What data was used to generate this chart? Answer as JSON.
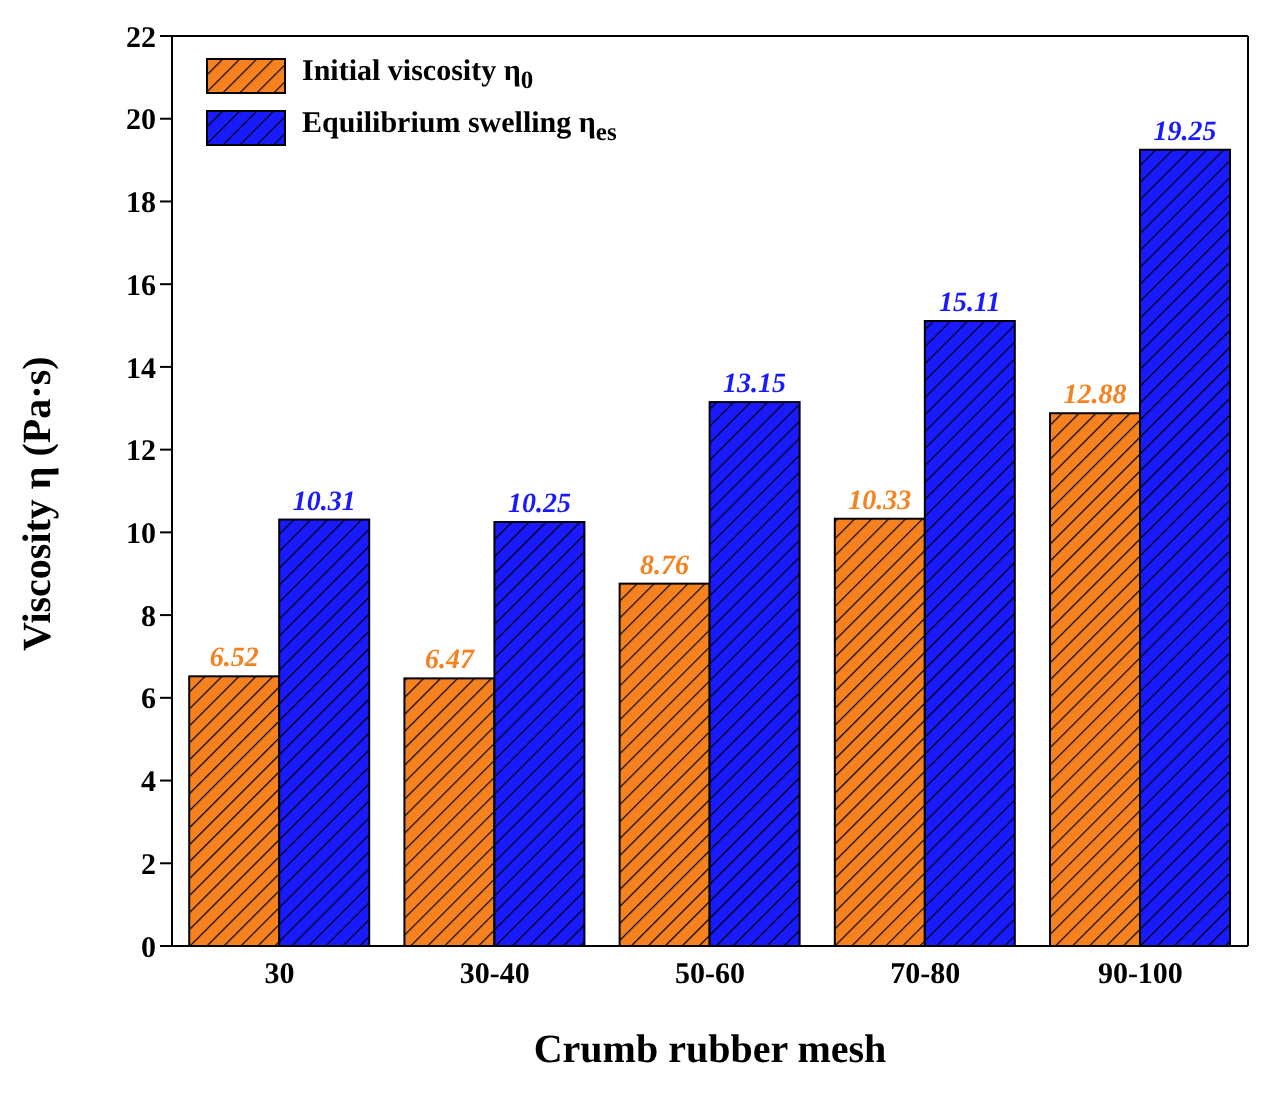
{
  "chart_data": {
    "type": "bar",
    "xlabel": "Crumb rubber mesh",
    "ylabel": "Viscosity η (Pa·s)",
    "categories": [
      "30",
      "30-40",
      "50-60",
      "70-80",
      "90-100"
    ],
    "series": [
      {
        "name": "Initial viscosity η$_{0}$",
        "color": "#f5821f",
        "values": [
          6.52,
          6.47,
          8.76,
          10.33,
          12.88
        ]
      },
      {
        "name": "Equilibrium swelling η$_{es}$",
        "color": "#1a1aff",
        "values": [
          10.31,
          10.25,
          13.15,
          15.11,
          19.25
        ]
      }
    ],
    "ylim": [
      0,
      22
    ],
    "yticks": [
      0,
      2,
      4,
      6,
      8,
      10,
      12,
      14,
      16,
      18,
      20,
      22
    ],
    "data_labels": true,
    "legend": "top left",
    "grid": false
  }
}
